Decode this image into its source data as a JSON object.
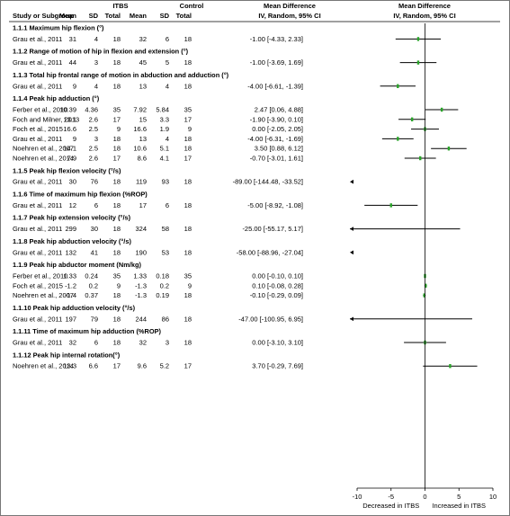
{
  "header": {
    "study_label": "Study or Subgroup",
    "group1": "ITBS",
    "group2": "Control",
    "mean": "Mean",
    "sd": "SD",
    "total": "Total",
    "md_title": "Mean Difference",
    "md_method": "IV, Random, 95% CI",
    "plot_title": "Mean Difference",
    "plot_method": "IV, Random, 95% CI"
  },
  "axis": {
    "ticks": [
      "-10",
      "-5",
      "0",
      "5",
      "10"
    ],
    "left_label": "Decreased in ITBS",
    "right_label": "Increased in ITBS"
  },
  "colors": {
    "marker": "#2aa52a",
    "line": "#000000",
    "text": "#000000"
  },
  "chart_data": {
    "type": "forest",
    "xlim": [
      -10,
      10
    ],
    "xticks": [
      -10,
      -5,
      0,
      5,
      10
    ],
    "subgroups": [
      {
        "title": "1.1.1 Maximum hip flexion (°)",
        "studies": [
          {
            "name": "Grau et al., 2011",
            "mean1": "31",
            "sd1": "4",
            "n1": "18",
            "mean2": "32",
            "sd2": "6",
            "n2": "18",
            "ci_text": "-1.00 [-4.33, 2.33]",
            "md": -1.0,
            "lo": -4.33,
            "hi": 2.33
          }
        ]
      },
      {
        "title": "1.1.2 Range of motion of hip in flexion and extension (°)",
        "studies": [
          {
            "name": "Grau et al., 2011",
            "mean1": "44",
            "sd1": "3",
            "n1": "18",
            "mean2": "45",
            "sd2": "5",
            "n2": "18",
            "ci_text": "-1.00 [-3.69, 1.69]",
            "md": -1.0,
            "lo": -3.69,
            "hi": 1.69
          }
        ]
      },
      {
        "title": "1.1.3 Total hip frontal range of motion in abduction and adduction (°)",
        "studies": [
          {
            "name": "Grau et al., 2011",
            "mean1": "9",
            "sd1": "4",
            "n1": "18",
            "mean2": "13",
            "sd2": "4",
            "n2": "18",
            "ci_text": "-4.00 [-6.61, -1.39]",
            "md": -4.0,
            "lo": -6.61,
            "hi": -1.39
          }
        ]
      },
      {
        "title": "1.1.4 Peak hip adduction (°)",
        "studies": [
          {
            "name": "Ferber et al., 2010",
            "mean1": "10.39",
            "sd1": "4.36",
            "n1": "35",
            "mean2": "7.92",
            "sd2": "5.84",
            "n2": "35",
            "ci_text": "2.47 [0.06, 4.88]",
            "md": 2.47,
            "lo": 0.06,
            "hi": 4.88
          },
          {
            "name": "Foch and Milner, 2013",
            "mean1": "13.1",
            "sd1": "2.6",
            "n1": "17",
            "mean2": "15",
            "sd2": "3.3",
            "n2": "17",
            "ci_text": "-1.90 [-3.90, 0.10]",
            "md": -1.9,
            "lo": -3.9,
            "hi": 0.1
          },
          {
            "name": "Foch et al., 2015",
            "mean1": "16.6",
            "sd1": "2.5",
            "n1": "9",
            "mean2": "16.6",
            "sd2": "1.9",
            "n2": "9",
            "ci_text": "0.00 [-2.05, 2.05]",
            "md": 0.0,
            "lo": -2.05,
            "hi": 2.05
          },
          {
            "name": "Grau et al., 2011",
            "mean1": "9",
            "sd1": "3",
            "n1": "18",
            "mean2": "13",
            "sd2": "4",
            "n2": "18",
            "ci_text": "-4.00 [-6.31, -1.69]",
            "md": -4.0,
            "lo": -6.31,
            "hi": -1.69
          },
          {
            "name": "Noehren et al., 2007",
            "mean1": "14.1",
            "sd1": "2.5",
            "n1": "18",
            "mean2": "10.6",
            "sd2": "5.1",
            "n2": "18",
            "ci_text": "3.50 [0.88, 6.12]",
            "md": 3.5,
            "lo": 0.88,
            "hi": 6.12
          },
          {
            "name": "Noehren et al., 2014",
            "mean1": "7.9",
            "sd1": "2.6",
            "n1": "17",
            "mean2": "8.6",
            "sd2": "4.1",
            "n2": "17",
            "ci_text": "-0.70 [-3.01, 1.61]",
            "md": -0.7,
            "lo": -3.01,
            "hi": 1.61
          }
        ]
      },
      {
        "title": "1.1.5 Peak hip flexion velocity (°/s)",
        "studies": [
          {
            "name": "Grau et al., 2011",
            "mean1": "30",
            "sd1": "76",
            "n1": "18",
            "mean2": "119",
            "sd2": "93",
            "n2": "18",
            "ci_text": "-89.00 [-144.48, -33.52]",
            "md": -89.0,
            "lo": -144.48,
            "hi": -33.52
          }
        ]
      },
      {
        "title": "1.1.6 Time of maximum hip flexion (%ROP)",
        "studies": [
          {
            "name": "Grau et al., 2011",
            "mean1": "12",
            "sd1": "6",
            "n1": "18",
            "mean2": "17",
            "sd2": "6",
            "n2": "18",
            "ci_text": "-5.00 [-8.92, -1.08]",
            "md": -5.0,
            "lo": -8.92,
            "hi": -1.08
          }
        ]
      },
      {
        "title": "1.1.7 Peak hip extension velocity (°/s)",
        "studies": [
          {
            "name": "Grau et al., 2011",
            "mean1": "299",
            "sd1": "30",
            "n1": "18",
            "mean2": "324",
            "sd2": "58",
            "n2": "18",
            "ci_text": "-25.00 [-55.17, 5.17]",
            "md": -25.0,
            "lo": -55.17,
            "hi": 5.17
          }
        ]
      },
      {
        "title": "1.1.8 Peak hip abduction velocity (°/s)",
        "studies": [
          {
            "name": "Grau et al., 2011",
            "mean1": "132",
            "sd1": "41",
            "n1": "18",
            "mean2": "190",
            "sd2": "53",
            "n2": "18",
            "ci_text": "-58.00 [-88.96, -27.04]",
            "md": -58.0,
            "lo": -88.96,
            "hi": -27.04
          }
        ]
      },
      {
        "title": "1.1.9 Peak hip abductor moment (Nm/kg)",
        "studies": [
          {
            "name": "Ferber et al., 2010",
            "mean1": "1.33",
            "sd1": "0.24",
            "n1": "35",
            "mean2": "1.33",
            "sd2": "0.18",
            "n2": "35",
            "ci_text": "0.00 [-0.10, 0.10]",
            "md": 0.0,
            "lo": -0.1,
            "hi": 0.1
          },
          {
            "name": "Foch et al., 2015",
            "mean1": "-1.2",
            "sd1": "0.2",
            "n1": "9",
            "mean2": "-1.3",
            "sd2": "0.2",
            "n2": "9",
            "ci_text": "0.10 [-0.08, 0.28]",
            "md": 0.1,
            "lo": -0.08,
            "hi": 0.28
          },
          {
            "name": "Noehren et al., 2007",
            "mean1": "-1.4",
            "sd1": "0.37",
            "n1": "18",
            "mean2": "-1.3",
            "sd2": "0.19",
            "n2": "18",
            "ci_text": "-0.10 [-0.29, 0.09]",
            "md": -0.1,
            "lo": -0.29,
            "hi": 0.09
          }
        ]
      },
      {
        "title": "1.1.10 Peak hip adduction velocity (°/s)",
        "studies": [
          {
            "name": "Grau et al., 2011",
            "mean1": "197",
            "sd1": "79",
            "n1": "18",
            "mean2": "244",
            "sd2": "86",
            "n2": "18",
            "ci_text": "-47.00 [-100.95, 6.95]",
            "md": -47.0,
            "lo": -100.95,
            "hi": 6.95
          }
        ]
      },
      {
        "title": "1.1.11 Time of maximum hip adduction (%ROP)",
        "studies": [
          {
            "name": "Grau et al., 2011",
            "mean1": "32",
            "sd1": "6",
            "n1": "18",
            "mean2": "32",
            "sd2": "3",
            "n2": "18",
            "ci_text": "0.00 [-3.10, 3.10]",
            "md": 0.0,
            "lo": -3.1,
            "hi": 3.1
          }
        ]
      },
      {
        "title": "1.1.12 Peak hip internal rotation(°)",
        "studies": [
          {
            "name": "Noehren et al., 2014",
            "mean1": "13.3",
            "sd1": "6.6",
            "n1": "17",
            "mean2": "9.6",
            "sd2": "5.2",
            "n2": "17",
            "ci_text": "3.70 [-0.29, 7.69]",
            "md": 3.7,
            "lo": -0.29,
            "hi": 7.69
          }
        ]
      }
    ]
  }
}
